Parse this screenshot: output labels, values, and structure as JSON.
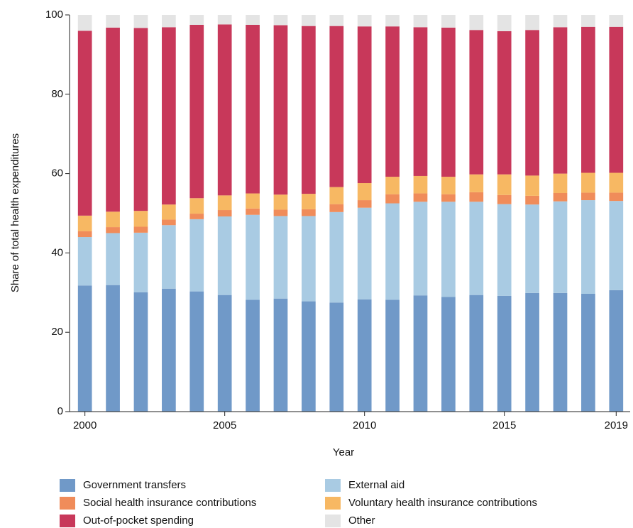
{
  "chart_data": {
    "type": "stacked_bar",
    "x_label": "Year",
    "y_label": "Share of total health expenditures",
    "x": [
      2000,
      2001,
      2002,
      2003,
      2004,
      2005,
      2006,
      2007,
      2008,
      2009,
      2010,
      2011,
      2012,
      2013,
      2014,
      2015,
      2016,
      2017,
      2018,
      2019
    ],
    "xlim": [
      1999.45,
      2019.5
    ],
    "xticks": [
      2000,
      2005,
      2010,
      2015,
      2019
    ],
    "ylim": [
      0,
      100
    ],
    "yticks": [
      0,
      20,
      40,
      60,
      80,
      100
    ],
    "grid": false,
    "legend": "bottom",
    "series": [
      {
        "name": "Government transfers",
        "color": "#7099c8",
        "values": [
          31.8,
          31.9,
          30.1,
          31.0,
          30.3,
          29.4,
          28.2,
          28.5,
          27.8,
          27.5,
          28.3,
          28.2,
          29.3,
          28.9,
          29.4,
          29.2,
          29.9,
          29.9,
          29.7,
          30.6
        ]
      },
      {
        "name": "External aid",
        "color": "#a9cbe3",
        "values": [
          12.2,
          13.1,
          15.0,
          16.0,
          18.2,
          19.8,
          21.4,
          20.8,
          21.5,
          22.8,
          23.1,
          24.3,
          23.6,
          24.0,
          23.5,
          23.1,
          22.3,
          23.1,
          23.6,
          22.5
        ]
      },
      {
        "name": "Social health insurance contributions",
        "color": "#f08c5a",
        "values": [
          1.5,
          1.5,
          1.5,
          1.4,
          1.4,
          1.6,
          1.6,
          1.6,
          1.7,
          2.0,
          1.9,
          2.3,
          2.1,
          1.9,
          2.4,
          2.3,
          2.2,
          2.1,
          1.9,
          2.1
        ]
      },
      {
        "name": "Voluntary health insurance contributions",
        "color": "#f7b863",
        "values": [
          3.9,
          3.9,
          4.0,
          3.8,
          3.9,
          3.7,
          3.8,
          3.8,
          3.9,
          4.3,
          4.3,
          4.4,
          4.4,
          4.4,
          4.5,
          5.2,
          5.1,
          4.9,
          5.0,
          5.0
        ]
      },
      {
        "name": "Out-of-pocket spending",
        "color": "#c8385a",
        "values": [
          46.6,
          46.4,
          46.1,
          44.7,
          43.7,
          43.1,
          42.5,
          42.7,
          42.3,
          40.6,
          39.5,
          37.9,
          37.5,
          37.6,
          36.4,
          36.1,
          36.7,
          36.9,
          36.8,
          36.8
        ]
      },
      {
        "name": "Other",
        "color": "#e4e4e4",
        "values": [
          4.0,
          3.2,
          3.3,
          3.1,
          2.5,
          2.4,
          2.5,
          2.6,
          2.8,
          2.8,
          2.9,
          2.9,
          3.1,
          3.2,
          3.8,
          4.1,
          3.8,
          3.1,
          3.0,
          3.0
        ]
      }
    ]
  }
}
